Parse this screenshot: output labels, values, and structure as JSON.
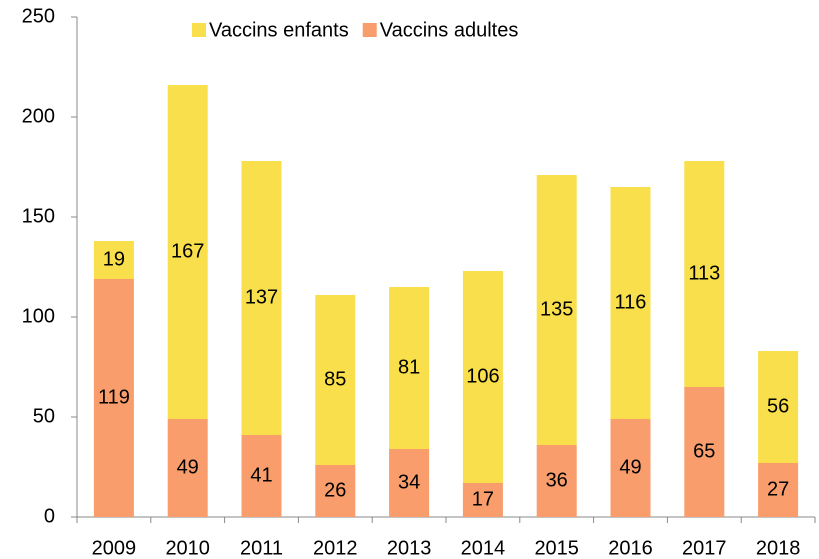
{
  "chart_data": {
    "type": "stacked_bar",
    "categories": [
      "2009",
      "2010",
      "2011",
      "2012",
      "2013",
      "2014",
      "2015",
      "2016",
      "2017",
      "2018"
    ],
    "series": [
      {
        "name": "Vaccins enfants",
        "color": "#f8df4b",
        "values": [
          19,
          167,
          137,
          85,
          81,
          106,
          135,
          116,
          113,
          56
        ]
      },
      {
        "name": "Vaccins adultes",
        "color": "#f89d6b",
        "values": [
          119,
          49,
          41,
          26,
          34,
          17,
          36,
          49,
          65,
          27
        ]
      }
    ],
    "ylim": [
      0,
      250
    ],
    "yticks": [
      0,
      50,
      100,
      150,
      200,
      250
    ],
    "legend": "top"
  }
}
